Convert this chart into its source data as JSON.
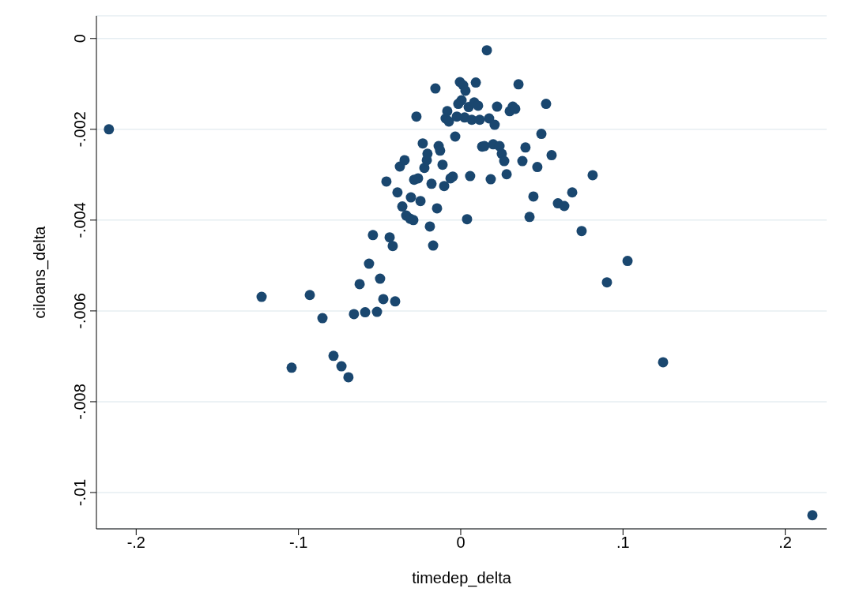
{
  "chart_data": {
    "type": "scatter",
    "xlabel": "timedep_delta",
    "ylabel": "ciloans_delta",
    "color": "#1a476f",
    "marker": "circle",
    "grid": "y",
    "xlim": [
      -0.2245,
      0.2255
    ],
    "ylim": [
      -0.0108,
      0.0005
    ],
    "xticks": [
      {
        "value": -0.2,
        "label": "-.2"
      },
      {
        "value": -0.1,
        "label": "-.1"
      },
      {
        "value": 0,
        "label": "0"
      },
      {
        "value": 0.1,
        "label": ".1"
      },
      {
        "value": 0.2,
        "label": ".2"
      }
    ],
    "yticks": [
      {
        "value": -0.01,
        "label": "-.01"
      },
      {
        "value": -0.008,
        "label": "-.008"
      },
      {
        "value": -0.006,
        "label": "-.006"
      },
      {
        "value": -0.004,
        "label": "-.004"
      },
      {
        "value": -0.002,
        "label": "-.002"
      },
      {
        "value": 0,
        "label": "0"
      }
    ],
    "x": [
      -0.2168,
      -0.1227,
      -0.1042,
      -0.093,
      -0.0852,
      -0.0784,
      -0.0735,
      -0.0692,
      -0.0658,
      -0.0623,
      -0.0589,
      -0.0565,
      -0.0541,
      -0.0516,
      -0.0497,
      -0.0477,
      -0.0458,
      -0.0438,
      -0.0419,
      -0.0404,
      -0.039,
      -0.0375,
      -0.036,
      -0.0346,
      -0.0336,
      -0.0312,
      -0.0307,
      -0.0292,
      -0.0287,
      -0.0273,
      -0.0263,
      -0.0248,
      -0.0234,
      -0.0224,
      -0.0209,
      -0.0205,
      -0.019,
      -0.018,
      -0.017,
      -0.0156,
      -0.0146,
      -0.0136,
      -0.0127,
      -0.0112,
      -0.0102,
      -0.0093,
      -0.0083,
      -0.0073,
      -0.0063,
      -0.0049,
      -0.0034,
      -0.0024,
      -0.0015,
      -0.0005,
      0.0005,
      0.0015,
      0.0024,
      0.0029,
      0.0039,
      0.0049,
      0.0058,
      0.0068,
      0.0083,
      0.0093,
      0.0107,
      0.0117,
      0.0132,
      0.0146,
      0.0161,
      0.0175,
      0.0185,
      0.02,
      0.0209,
      0.0224,
      0.0239,
      0.0253,
      0.0268,
      0.0283,
      0.0302,
      0.0321,
      0.0336,
      0.0356,
      0.038,
      0.0399,
      0.0424,
      0.0448,
      0.0472,
      0.0497,
      0.0526,
      0.056,
      0.0599,
      0.0638,
      0.0687,
      0.0745,
      0.0813,
      0.0901,
      0.1028,
      0.1247,
      0.2167
    ],
    "values": [
      -0.002,
      -0.00569,
      -0.00725,
      -0.00565,
      -0.00616,
      -0.00699,
      -0.00722,
      -0.00746,
      -0.00607,
      -0.00541,
      -0.00603,
      -0.00496,
      -0.00433,
      -0.00602,
      -0.00529,
      -0.00574,
      -0.00315,
      -0.00438,
      -0.00457,
      -0.00579,
      -0.00339,
      -0.00282,
      -0.0037,
      -0.00268,
      -0.0039,
      -0.00397,
      -0.0035,
      -0.004,
      -0.00311,
      -0.00172,
      -0.00308,
      -0.00358,
      -0.00231,
      -0.00285,
      -0.00268,
      -0.00254,
      -0.00414,
      -0.0032,
      -0.00456,
      -0.0011,
      -0.00374,
      -0.00237,
      -0.00247,
      -0.00278,
      -0.00325,
      -0.00176,
      -0.0016,
      -0.00183,
      -0.00308,
      -0.00304,
      -0.00216,
      -0.00172,
      -0.00144,
      -0.00096,
      -0.00136,
      -0.00103,
      -0.00174,
      -0.00115,
      -0.00398,
      -0.00151,
      -0.00303,
      -0.00179,
      -0.00141,
      -0.00097,
      -0.00148,
      -0.00179,
      -0.00238,
      -0.00237,
      -0.00026,
      -0.00176,
      -0.0031,
      -0.00233,
      -0.0019,
      -0.0015,
      -0.00237,
      -0.00254,
      -0.0027,
      -0.00299,
      -0.0016,
      -0.0015,
      -0.00155,
      -0.00101,
      -0.0027,
      -0.0024,
      -0.00393,
      -0.00348,
      -0.00283,
      -0.0021,
      -0.00144,
      -0.00257,
      -0.00363,
      -0.00369,
      -0.00339,
      -0.00424,
      -0.00301,
      -0.00537,
      -0.0049,
      -0.00713,
      -0.0105
    ]
  }
}
